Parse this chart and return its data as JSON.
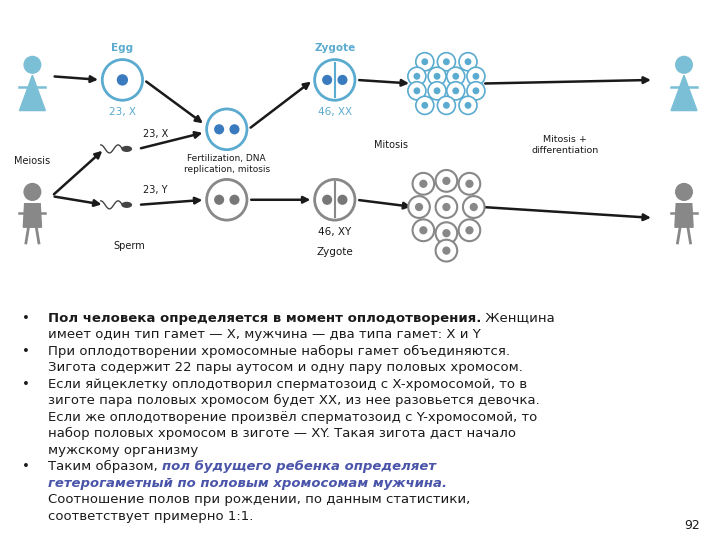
{
  "bg_color": "#ffffff",
  "page_number": "92",
  "cyan_color": "#5aabcf",
  "gray_color": "#888888",
  "dark_color": "#1a1a1a",
  "bold_italic_color": "#4a55aa",
  "diagram_elements": {
    "egg_label": "Egg",
    "egg_chrom": "23, X",
    "sperm_label": "Sperm",
    "sperm_x": "23, X",
    "sperm_y": "23, Y",
    "fertilization": "Fertilization, DNA\nreplication, mitosis",
    "zygote_top_chrom": "46, XX",
    "zygote_bot_chrom": "46, XY",
    "zygote_label_top": "Zygote",
    "zygote_label_bot": "Zygote",
    "meiosis": "Meiosis",
    "mitosis": "Mitosis",
    "mitosis_diff": "Mitosis +\ndifferentiation"
  },
  "text_lines": [
    {
      "type": "bullet",
      "parts": [
        {
          "text": "Пол человека определяется в момент оплодотворения.",
          "bold": true,
          "color": "#1a1a1a"
        },
        {
          "text": " Женщина",
          "bold": false,
          "color": "#1a1a1a"
        }
      ]
    },
    {
      "type": "continuation",
      "parts": [
        {
          "text": "имеет один тип гамет — X, мужчина — два типа гамет: X и Y",
          "bold": false,
          "color": "#1a1a1a"
        }
      ]
    },
    {
      "type": "bullet",
      "parts": [
        {
          "text": "При оплодотворении хромосомные наборы гамет объединяются.",
          "bold": false,
          "color": "#1a1a1a"
        }
      ]
    },
    {
      "type": "continuation",
      "parts": [
        {
          "text": "Зигота содержит 22 пары аутосом и одну пару половых хромосом.",
          "bold": false,
          "color": "#1a1a1a"
        }
      ]
    },
    {
      "type": "bullet",
      "parts": [
        {
          "text": "Если яйцеклетку оплодотворил сперматозоид с X-хромосомой, то в",
          "bold": false,
          "color": "#1a1a1a"
        }
      ]
    },
    {
      "type": "continuation",
      "parts": [
        {
          "text": "зиготе пара половых хромосом будет XX, из нее разовьется девочка.",
          "bold": false,
          "color": "#1a1a1a"
        }
      ]
    },
    {
      "type": "continuation",
      "parts": [
        {
          "text": "Если же оплодотворение произвёл сперматозоид с Y-хромосомой, то",
          "bold": false,
          "color": "#1a1a1a"
        }
      ]
    },
    {
      "type": "continuation",
      "parts": [
        {
          "text": "набор половых хромосом в зиготе — XY. Такая зигота даст начало",
          "bold": false,
          "color": "#1a1a1a"
        }
      ]
    },
    {
      "type": "continuation",
      "parts": [
        {
          "text": "мужскому организму",
          "bold": false,
          "color": "#1a1a1a"
        }
      ]
    },
    {
      "type": "bullet",
      "parts": [
        {
          "text": "Таким образом, ",
          "bold": false,
          "color": "#1a1a1a"
        },
        {
          "text": "пол будущего ребенка определяет",
          "bold": true,
          "italic": true,
          "color": "#4a55aa"
        }
      ]
    },
    {
      "type": "continuation",
      "parts": [
        {
          "text": "гетерогаметный по половым хромосомам мужчина.",
          "bold": true,
          "italic": true,
          "color": "#4a55aa"
        }
      ]
    },
    {
      "type": "continuation",
      "parts": [
        {
          "text": "Соотношение полов при рождении, по данным статистики,",
          "bold": false,
          "color": "#1a1a1a"
        }
      ]
    },
    {
      "type": "continuation",
      "parts": [
        {
          "text": "соответствует примерно 1:1.",
          "bold": false,
          "color": "#1a1a1a"
        }
      ]
    }
  ]
}
